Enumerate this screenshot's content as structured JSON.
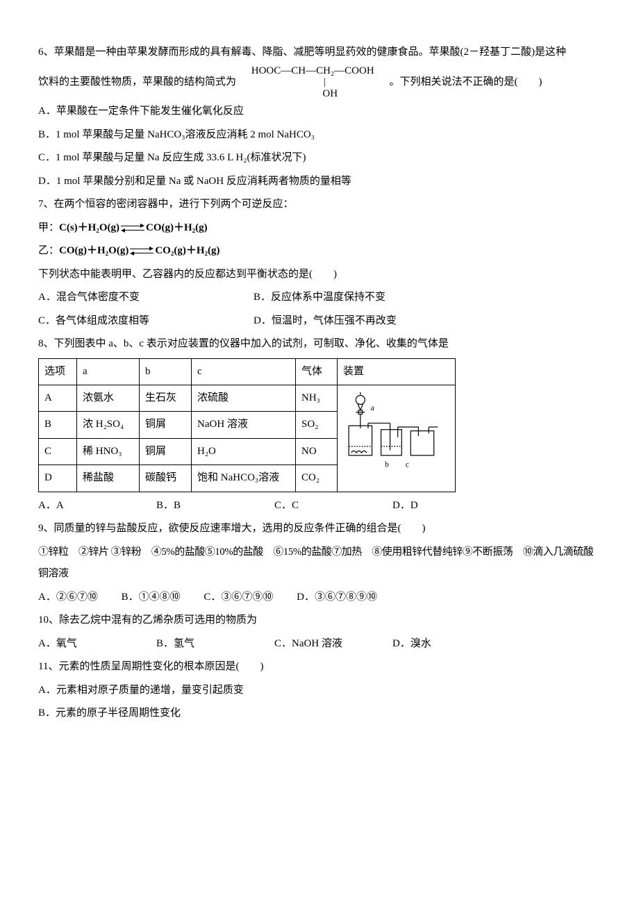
{
  "q6": {
    "stem_a": "6、苹果醋是一种由苹果发酵而形成的具有解毒、降脂、减肥等明显药效的健康食品。苹果酸(2－羟基丁二酸)是这种",
    "stem_b": "饮料的主要酸性物质，苹果酸的结构简式为",
    "stem_c": "。下列相关说法不正确的是(　　)",
    "formula_top": "HOOC—CH—CH₂—COOH",
    "formula_mid": "|",
    "formula_bot": "OH",
    "optA": "A．苹果酸在一定条件下能发生催化氧化反应",
    "optB": "B．1 mol 苹果酸与足量 NaHCO₃溶液反应消耗 2 mol NaHCO₃",
    "optC": "C．1 mol 苹果酸与足量 Na 反应生成 33.6 L H₂(标准状况下)",
    "optD": "D．1 mol 苹果酸分别和足量 Na 或 NaOH 反应消耗两者物质的量相等"
  },
  "q7": {
    "stem": "7、在两个恒容的密闭容器中，进行下列两个可逆反应：",
    "line1_pre": "甲：",
    "line1_eq_l": "C(s)＋H₂O(g)",
    "line1_eq_r": "CO(g)＋H₂(g)",
    "line2_pre": "乙：",
    "line2_eq_l": "CO(g)＋H₂O(g)",
    "line2_eq_r": "CO₂(g)＋H₂(g)",
    "stem2": "下列状态中能表明甲、乙容器内的反应都达到平衡状态的是(　　)",
    "optA": "A．混合气体密度不变",
    "optB": "B．反应体系中温度保持不变",
    "optC": "C．各气体组成浓度相等",
    "optD": "D．恒温时，气体压强不再改变"
  },
  "q8": {
    "stem": "8、下列图表中 a、b、c 表示对应装置的仪器中加入的试剂，可制取、净化、收集的气体是",
    "table": {
      "widths": [
        55,
        90,
        75,
        150,
        60,
        170
      ],
      "head": [
        "选项",
        "a",
        "b",
        "c",
        "气体",
        "装置"
      ],
      "rows": [
        [
          "A",
          "浓氨水",
          "生石灰",
          "浓硫酸",
          "NH₃"
        ],
        [
          "B",
          "浓 H₂SO₄",
          "铜屑",
          "NaOH 溶液",
          "SO₂"
        ],
        [
          "C",
          "稀 HNO₃",
          "铜屑",
          "H₂O",
          "NO"
        ],
        [
          "D",
          "稀盐酸",
          "碳酸钙",
          "饱和 NaHCO₃溶液",
          "CO₂"
        ]
      ]
    },
    "optA": "A．A",
    "optB": "B．B",
    "optC": "C．C",
    "optD": "D．D"
  },
  "q9": {
    "stem": "9、同质量的锌与盐酸反应，欲使反应速率增大，选用的反应条件正确的组合是(　　)",
    "items": "①锌粒　②锌片 ③锌粉　④5%的盐酸⑤10%的盐酸　⑥15%的盐酸⑦加热　⑧使用粗锌代替纯锌⑨不断振荡　⑩滴入几滴硫酸铜溶液",
    "optA": "A．②⑥⑦⑩",
    "optB": "B．①④⑧⑩",
    "optC": "C．③⑥⑦⑨⑩",
    "optD": "D．③⑥⑦⑧⑨⑩"
  },
  "q10": {
    "stem": "10、除去乙烷中混有的乙烯杂质可选用的物质为",
    "optA": "A．氧气",
    "optB": "B．氢气",
    "optC": "C．NaOH 溶液",
    "optD": "D．溴水"
  },
  "q11": {
    "stem": "11、元素的性质呈周期性变化的根本原因是(　　)",
    "optA": "A．元素相对原子质量的递增，量变引起质变",
    "optB": "B．元素的原子半径周期性变化"
  },
  "apparatus_labels": {
    "a": "a",
    "b": "b",
    "c": "c"
  }
}
